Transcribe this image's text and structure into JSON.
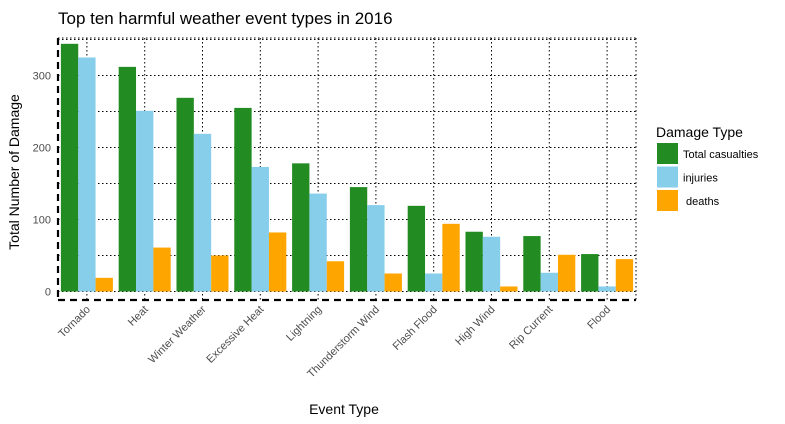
{
  "chart_data": {
    "type": "bar",
    "title": "Top ten harmful weather event types in 2016",
    "xlabel": "Event Type",
    "ylabel": "Total Number of Damage",
    "categories": [
      "Tornado",
      "Heat",
      "Winter Weather",
      "Excessive Heat",
      "Lightning",
      "Thunderstorm Wind",
      "Flash Flood",
      "High Wind",
      "Rip Current",
      "Flood"
    ],
    "series": [
      {
        "name": "Total casualties",
        "color": "#228B22",
        "values": [
          344,
          312,
          269,
          255,
          178,
          145,
          119,
          83,
          77,
          52
        ]
      },
      {
        "name": "injuries",
        "color": "#87CEEB",
        "values": [
          325,
          251,
          219,
          173,
          136,
          120,
          25,
          76,
          26,
          7
        ]
      },
      {
        "name": " deaths",
        "color": "#FFA500",
        "values": [
          19,
          61,
          50,
          82,
          42,
          25,
          94,
          7,
          51,
          45
        ]
      }
    ],
    "ylim": [
      0,
      360
    ],
    "yticks": [
      0,
      100,
      200,
      300
    ],
    "grid": true,
    "legend": {
      "title": "Damage Type",
      "position": "right"
    }
  }
}
